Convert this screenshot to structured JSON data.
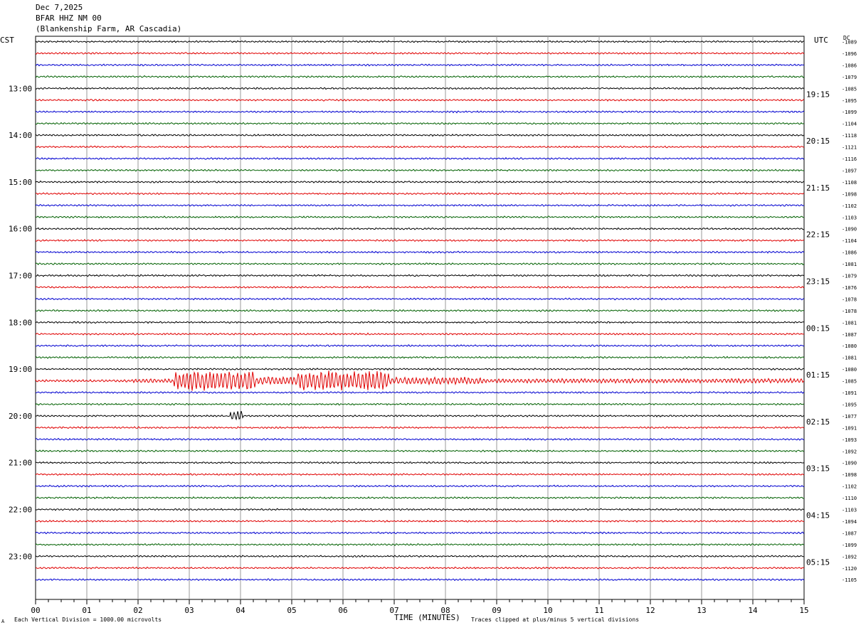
{
  "header": {
    "date": "Dec 7,2025",
    "station": "BFAR HHZ NM 00",
    "location": "(Blankenship Farm, AR Cascadia)"
  },
  "left_tz": "CST",
  "right_tz": "UTC",
  "dc_label": "DC",
  "footer": {
    "scale": "Each Vertical Division = 1000.00 microvolts",
    "xlabel": "TIME (MINUTES)",
    "clip": "Traces clipped at plus/minus 5 vertical divisions",
    "corner": "A"
  },
  "chart_data": {
    "type": "line",
    "title": "",
    "xlabel": "TIME (MINUTES)",
    "xlim": [
      0,
      15
    ],
    "x_ticks": [
      "00",
      "01",
      "02",
      "03",
      "04",
      "05",
      "06",
      "07",
      "08",
      "09",
      "10",
      "11",
      "12",
      "13",
      "14",
      "15"
    ],
    "trace_colors": [
      "#000000",
      "#e00000",
      "#0000d0",
      "#006000"
    ],
    "left_hour_labels": [
      "13:00",
      "14:00",
      "15:00",
      "16:00",
      "17:00",
      "18:00",
      "19:00",
      "20:00",
      "21:00",
      "22:00",
      "23:00"
    ],
    "right_hour_labels": [
      "19:15",
      "20:15",
      "21:15",
      "22:15",
      "23:15",
      "00:15",
      "01:15",
      "02:15",
      "03:15",
      "04:15",
      "05:15"
    ],
    "dc_offsets": [
      "-1089",
      "-1096",
      "-1086",
      "-1079",
      "-1085",
      "-1095",
      "-1099",
      "-1104",
      "-1118",
      "-1121",
      "-1116",
      "-1097",
      "-1108",
      "-1098",
      "-1102",
      "-1103",
      "-1090",
      "-1104",
      "-1086",
      "-1081",
      "-1079",
      "-1076",
      "-1078",
      "-1078",
      "-1081",
      "-1087",
      "-1080",
      "-1081",
      "-1080",
      "-1085",
      "-1091",
      "-1095",
      "-1077",
      "-1091",
      "-1093",
      "-1092",
      "-1090",
      "-1098",
      "-1102",
      "-1110",
      "-1103",
      "-1094",
      "-1087",
      "-1099",
      "-1092",
      "-1120",
      "-1105"
    ],
    "events": [
      {
        "trace": 29,
        "segments": [
          {
            "start": 0.0,
            "end": 1.9,
            "amp": 1.5
          },
          {
            "start": 1.9,
            "end": 2.7,
            "amp": 3.0
          },
          {
            "start": 2.7,
            "end": 4.3,
            "amp": 14.0
          },
          {
            "start": 4.3,
            "end": 5.1,
            "amp": 6.0
          },
          {
            "start": 5.1,
            "end": 6.9,
            "amp": 14.0
          },
          {
            "start": 6.9,
            "end": 8.7,
            "amp": 5.0
          },
          {
            "start": 8.7,
            "end": 15.0,
            "amp": 3.0
          }
        ]
      },
      {
        "trace": 32,
        "segments": [
          {
            "start": 3.8,
            "end": 4.05,
            "amp": 7.0
          }
        ]
      }
    ]
  }
}
